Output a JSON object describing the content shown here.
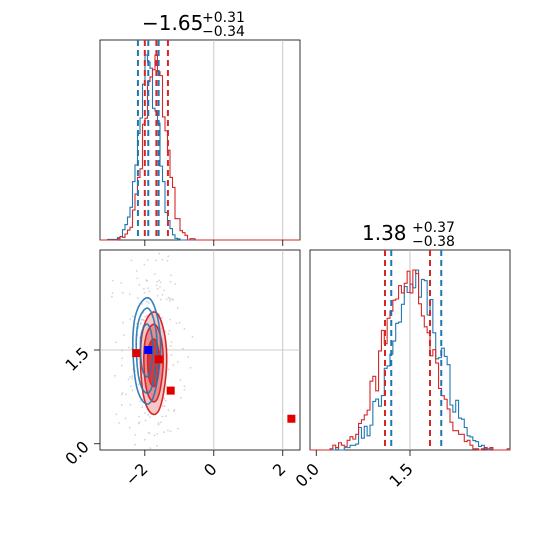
{
  "chart_data": {
    "type": "corner",
    "parameters": [
      {
        "title": {
          "value": "−1.65",
          "upper": "+0.31",
          "lower": "−0.34"
        },
        "range": [
          -3.3,
          2.5
        ],
        "ticks": [
          {
            "value": -2,
            "label": "−2"
          },
          {
            "value": 0,
            "label": "0"
          },
          {
            "value": 2,
            "label": "2"
          }
        ]
      },
      {
        "title": {
          "value": "1.38",
          "upper": "+0.37",
          "lower": "−0.38"
        },
        "range": [
          -0.1,
          3.1
        ],
        "ticks": [
          {
            "value": 0.0,
            "label": "0.0"
          },
          {
            "value": 1.5,
            "label": "1.5"
          }
        ]
      }
    ],
    "series": [
      {
        "color": "#1f77b4",
        "quantiles_p1": [
          -2.2,
          -1.6
        ],
        "quantiles_p2": [
          1.2,
          2.0
        ],
        "center": [
          -1.95,
          1.5
        ],
        "contour_sigmas": [
          [
            0.18,
            0.42
          ],
          [
            0.3,
            0.68
          ],
          [
            0.4,
            0.85
          ]
        ]
      },
      {
        "color": "#d62728",
        "quantiles_p1": [
          -2.0,
          -1.33
        ],
        "quantiles_p2": [
          1.1,
          1.82
        ],
        "center": [
          -1.75,
          1.3
        ],
        "contour_sigmas": [
          [
            0.17,
            0.38
          ],
          [
            0.28,
            0.62
          ],
          [
            0.38,
            0.82
          ]
        ]
      }
    ],
    "red_markers": [
      [
        -2.25,
        1.45
      ],
      [
        -1.6,
        1.35
      ],
      [
        -1.25,
        0.85
      ],
      [
        2.25,
        0.4
      ]
    ],
    "blue_markers": [
      [
        -1.9,
        1.5
      ]
    ],
    "truth_lines": {
      "p1": [
        0,
        2
      ],
      "p2": [
        1.5
      ]
    }
  }
}
